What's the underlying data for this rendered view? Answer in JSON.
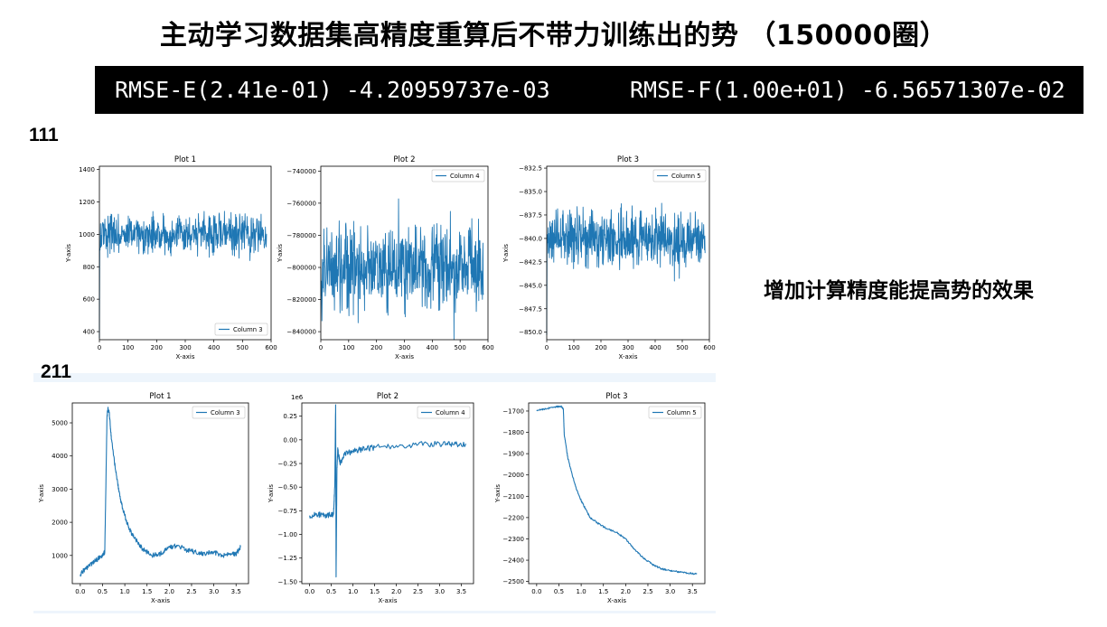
{
  "title": "主动学习数据集高精度重算后不带力训练出的势 （150000圈）",
  "rmse": {
    "energy": "RMSE-E(2.41e-01) -4.20959737e-03",
    "force": "RMSE-F(1.00e+01) -6.56571307e-02"
  },
  "row1_label": "111",
  "row2_label": "211",
  "side_note": "增加计算精度能提高势的效果",
  "colors": {
    "line": "#1f77b4",
    "bar_bg": "#000000"
  },
  "chart_data": [
    {
      "type": "line",
      "title": "Plot 1",
      "xlabel": "X-axis",
      "ylabel": "Y-axis",
      "series": [
        {
          "name": "Column 3",
          "style": "noise",
          "start": 360,
          "mean": 1000,
          "spread": 180,
          "n": 585
        }
      ],
      "xlim": [
        0,
        600
      ],
      "ylim": [
        350,
        1420
      ],
      "xticks": [
        0,
        100,
        200,
        300,
        400,
        500,
        600
      ],
      "yticks": [
        400,
        600,
        800,
        1000,
        1200,
        1400
      ],
      "ytick_labels": [
        "400",
        "600",
        "800",
        "1000",
        "1200",
        "1400"
      ],
      "legend": "lower-right",
      "offset_text": ""
    },
    {
      "type": "line",
      "title": "Plot 2",
      "xlabel": "X-axis",
      "ylabel": "Y-axis",
      "series": [
        {
          "name": "Column 4",
          "style": "noise",
          "start": -800000,
          "mean": -800000,
          "spread": 38000,
          "n": 585
        }
      ],
      "xlim": [
        0,
        600
      ],
      "ylim": [
        -845000,
        -737000
      ],
      "xticks": [
        0,
        100,
        200,
        300,
        400,
        500,
        600
      ],
      "yticks": [
        -840000,
        -820000,
        -800000,
        -780000,
        -760000,
        -740000
      ],
      "ytick_labels": [
        "−840000",
        "−820000",
        "−800000",
        "−780000",
        "−760000",
        "−740000"
      ],
      "legend": "upper-right",
      "offset_text": ""
    },
    {
      "type": "line",
      "title": "Plot 3",
      "xlabel": "X-axis",
      "ylabel": "Y-axis",
      "series": [
        {
          "name": "Column 5",
          "style": "noise",
          "start": -850.3,
          "mean": -840,
          "spread": 4.2,
          "n": 585
        }
      ],
      "xlim": [
        0,
        600
      ],
      "ylim": [
        -850.8,
        -832.3
      ],
      "xticks": [
        0,
        100,
        200,
        300,
        400,
        500,
        600
      ],
      "yticks": [
        -850,
        -847.5,
        -845,
        -842.5,
        -840,
        -837.5,
        -835,
        -832.5
      ],
      "ytick_labels": [
        "−850.0",
        "−847.5",
        "−845.0",
        "−842.5",
        "−840.0",
        "−837.5",
        "−835.0",
        "−832.5"
      ],
      "legend": "upper-right",
      "offset_text": ""
    },
    {
      "type": "line",
      "title": "Plot 1",
      "xlabel": "X-axis",
      "ylabel": "Y-axis",
      "series": [
        {
          "name": "Column 3",
          "style": "path",
          "x": [
            0,
            0.1,
            0.2,
            0.3,
            0.4,
            0.5,
            0.55,
            0.6,
            0.62,
            0.65,
            0.7,
            0.8,
            0.9,
            1.0,
            1.1,
            1.2,
            1.4,
            1.6,
            1.8,
            2.0,
            2.2,
            2.4,
            2.6,
            2.8,
            3.0,
            3.2,
            3.4,
            3.5,
            3.6
          ],
          "y": [
            430,
            580,
            700,
            800,
            900,
            1000,
            1100,
            5200,
            5420,
            5300,
            4500,
            3500,
            2700,
            2200,
            1800,
            1550,
            1200,
            1000,
            1050,
            1250,
            1300,
            1150,
            1100,
            1050,
            1100,
            1000,
            1050,
            1050,
            1250
          ],
          "jitter": 70
        }
      ],
      "xlim": [
        -0.18,
        3.78
      ],
      "ylim": [
        150,
        5600
      ],
      "xticks": [
        0,
        0.5,
        1,
        1.5,
        2,
        2.5,
        3,
        3.5
      ],
      "yticks": [
        1000,
        2000,
        3000,
        4000,
        5000
      ],
      "ytick_labels": [
        "1000",
        "2000",
        "3000",
        "4000",
        "5000"
      ],
      "xtick_labels": [
        "0.0",
        "0.5",
        "1.0",
        "1.5",
        "2.0",
        "2.5",
        "3.0",
        "3.5"
      ],
      "legend": "upper-right",
      "offset_text": ""
    },
    {
      "type": "line",
      "title": "Plot 2",
      "xlabel": "X-axis",
      "ylabel": "Y-axis",
      "series": [
        {
          "name": "Column 4",
          "style": "path",
          "x": [
            0,
            0.2,
            0.4,
            0.5,
            0.55,
            0.58,
            0.6,
            0.61,
            0.62,
            0.63,
            0.65,
            0.7,
            0.8,
            1.0,
            1.2,
            1.5,
            2.0,
            2.5,
            3.0,
            3.3,
            3.6
          ],
          "y": [
            -0.8,
            -0.79,
            -0.8,
            -0.79,
            -0.78,
            -0.5,
            0.37,
            -1.45,
            -0.9,
            -0.3,
            -0.1,
            -0.25,
            -0.15,
            -0.12,
            -0.1,
            -0.08,
            -0.06,
            -0.05,
            -0.04,
            -0.05,
            -0.04
          ],
          "jitter": 0.03
        }
      ],
      "xlim": [
        -0.18,
        3.78
      ],
      "ylim": [
        -1.52,
        0.39
      ],
      "xticks": [
        0,
        0.5,
        1,
        1.5,
        2,
        2.5,
        3,
        3.5
      ],
      "yticks": [
        -1.5,
        -1.25,
        -1,
        -0.75,
        -0.5,
        -0.25,
        0,
        0.25
      ],
      "ytick_labels": [
        "−1.50",
        "−1.25",
        "−1.00",
        "−0.75",
        "−0.50",
        "−0.25",
        "0.00",
        "0.25"
      ],
      "xtick_labels": [
        "0.0",
        "0.5",
        "1.0",
        "1.5",
        "2.0",
        "2.5",
        "3.0",
        "3.5"
      ],
      "legend": "upper-right",
      "offset_text": "1e6"
    },
    {
      "type": "line",
      "title": "Plot 3",
      "xlabel": "X-axis",
      "ylabel": "Y-axis",
      "series": [
        {
          "name": "Column 5",
          "style": "path",
          "x": [
            0,
            0.2,
            0.4,
            0.55,
            0.6,
            0.62,
            0.7,
            0.8,
            0.9,
            1.0,
            1.1,
            1.2,
            1.4,
            1.6,
            1.8,
            2.0,
            2.2,
            2.4,
            2.6,
            2.8,
            3.0,
            3.2,
            3.4,
            3.6
          ],
          "y": [
            -1695,
            -1690,
            -1682,
            -1678,
            -1690,
            -1810,
            -1920,
            -2000,
            -2070,
            -2120,
            -2160,
            -2200,
            -2230,
            -2255,
            -2270,
            -2300,
            -2350,
            -2390,
            -2420,
            -2440,
            -2450,
            -2455,
            -2460,
            -2465
          ],
          "jitter": 4
        }
      ],
      "xlim": [
        -0.18,
        3.78
      ],
      "ylim": [
        -2510,
        -1662
      ],
      "xticks": [
        0,
        0.5,
        1,
        1.5,
        2,
        2.5,
        3,
        3.5
      ],
      "yticks": [
        -2500,
        -2400,
        -2300,
        -2200,
        -2100,
        -2000,
        -1900,
        -1800,
        -1700
      ],
      "ytick_labels": [
        "−2500",
        "−2400",
        "−2300",
        "−2200",
        "−2100",
        "−2000",
        "−1900",
        "−1800",
        "−1700"
      ],
      "xtick_labels": [
        "0.0",
        "0.5",
        "1.0",
        "1.5",
        "2.0",
        "2.5",
        "3.0",
        "3.5"
      ],
      "legend": "upper-right",
      "offset_text": ""
    }
  ]
}
